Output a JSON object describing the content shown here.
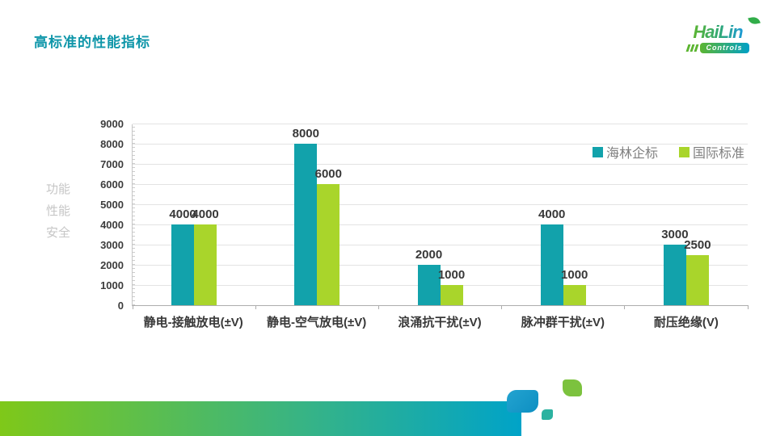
{
  "slide": {
    "title": "高标准的性能指标",
    "side_labels": [
      "功能",
      "性能",
      "安全"
    ],
    "logo": {
      "brand": "HaiLin",
      "sub": "Controls"
    }
  },
  "theme": {
    "title_color": "#0E96A9",
    "series1_color": "#12A2AB",
    "series2_color": "#A9D52B",
    "footer_gradient": [
      "#7FC819",
      "#00A3C8"
    ]
  },
  "chart_data": {
    "type": "bar",
    "title": "",
    "xlabel": "",
    "ylabel": "",
    "categories": [
      "静电-接触放电(±V)",
      "静电-空气放电(±V)",
      "浪涌抗干扰(±V)",
      "脉冲群干扰(±V)",
      "耐压绝缘(V)"
    ],
    "series": [
      {
        "name": "海林企标",
        "color": "#12A2AB",
        "values": [
          4000,
          8000,
          2000,
          4000,
          3000
        ]
      },
      {
        "name": "国际标准",
        "color": "#A9D52B",
        "values": [
          4000,
          6000,
          1000,
          1000,
          2500
        ]
      }
    ],
    "ylim": [
      0,
      9000
    ],
    "yticks": [
      0,
      1000,
      2000,
      3000,
      4000,
      5000,
      6000,
      7000,
      8000,
      9000
    ],
    "grid": true,
    "legend_position": "top-right-inside"
  }
}
